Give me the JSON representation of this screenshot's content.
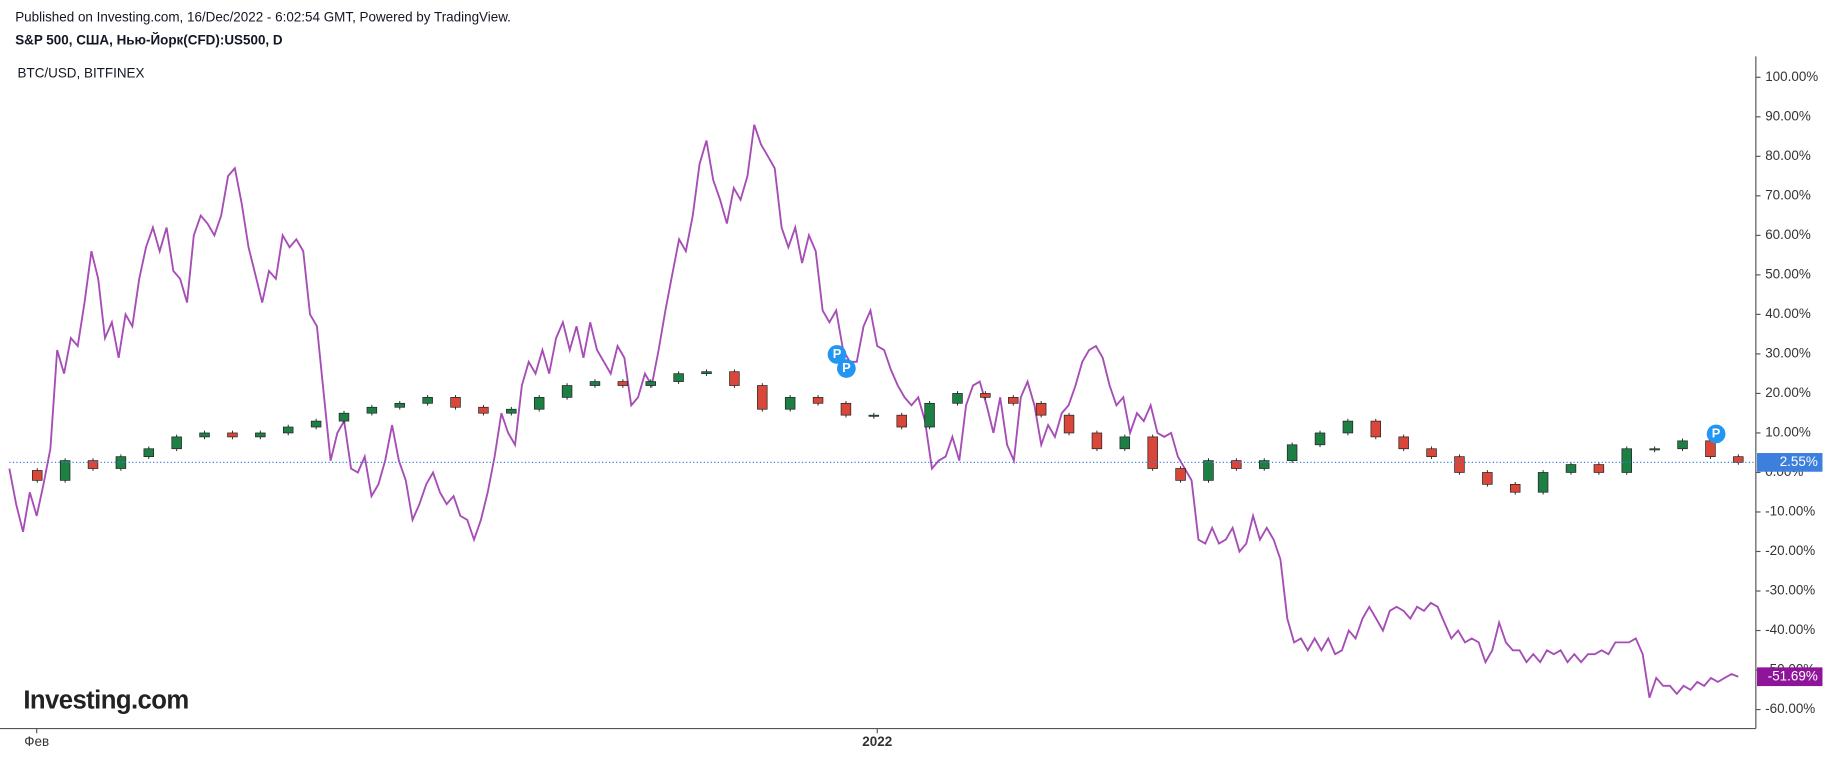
{
  "chart_data": {
    "type": "candle-line",
    "published": "Published on Investing.com, 16/Dec/2022 - 6:02:54 GMT, Powered by TradingView.",
    "watermark": "Investing.com",
    "event_marker": "P",
    "ylim": [
      -64.8,
      105.3
    ],
    "yticks": [
      {
        "value": 100,
        "label": "100.00%"
      },
      {
        "value": 90,
        "label": "90.00%"
      },
      {
        "value": 80,
        "label": "80.00%"
      },
      {
        "value": 70,
        "label": "70.00%"
      },
      {
        "value": 60,
        "label": "60.00%"
      },
      {
        "value": 50,
        "label": "50.00%"
      },
      {
        "value": 40,
        "label": "40.00%"
      },
      {
        "value": 30,
        "label": "30.00%"
      },
      {
        "value": 20,
        "label": "20.00%"
      },
      {
        "value": 10,
        "label": "10.00%"
      },
      {
        "value": 0,
        "label": "0.00%"
      },
      {
        "value": -10,
        "label": "-10.00%"
      },
      {
        "value": -20,
        "label": "-20.00%"
      },
      {
        "value": -30,
        "label": "-30.00%"
      },
      {
        "value": -40,
        "label": "-40.00%"
      },
      {
        "value": -50,
        "label": "-50.00%"
      },
      {
        "value": -60,
        "label": "-60.00%"
      }
    ],
    "xlim": [
      0,
      253
    ],
    "xticks": [
      {
        "value": 4,
        "label": "Фев"
      },
      {
        "value": 127,
        "label": "2022"
      }
    ],
    "grid": false,
    "series": [
      {
        "name": "BTC/USD, BITFINEX",
        "kind": "line",
        "color": "#a64db6",
        "last_label": "-51.69%",
        "label_color": "#8e1599",
        "values": [
          1,
          -8,
          -15,
          -5,
          -11,
          -3,
          6,
          31,
          25,
          34,
          32,
          43,
          56,
          49,
          34,
          38,
          29,
          40,
          37,
          49,
          57,
          62,
          56,
          62,
          51,
          49,
          43,
          60,
          65,
          63,
          60,
          65,
          75,
          77,
          68,
          57,
          50,
          43,
          51,
          49,
          60,
          57,
          59,
          56,
          40,
          37,
          20,
          3,
          10,
          13,
          1,
          0,
          4,
          -6,
          -3,
          3,
          12,
          3,
          -2,
          -12,
          -8,
          -3,
          0,
          -5,
          -8,
          -6,
          -11,
          -12,
          -17,
          -12,
          -5,
          4,
          15,
          10,
          7,
          22,
          28,
          25,
          31,
          25,
          34,
          38,
          31,
          37,
          29,
          38,
          31,
          28,
          25,
          32,
          29,
          17,
          19,
          25,
          22,
          31,
          41,
          50,
          59,
          56,
          65,
          78,
          84,
          74,
          69,
          63,
          72,
          69,
          75,
          88,
          83,
          80,
          77,
          62,
          57,
          62,
          53,
          60,
          56,
          41,
          38,
          41,
          31,
          28,
          28,
          37,
          41,
          32,
          31,
          26,
          22,
          19,
          17,
          19,
          13,
          1,
          3,
          4,
          9,
          3,
          17,
          22,
          23,
          17,
          10,
          19,
          7,
          3,
          19,
          23,
          17,
          7,
          12,
          9,
          15,
          17,
          22,
          28,
          31,
          32,
          29,
          22,
          17,
          19,
          10,
          15,
          13,
          17,
          10,
          9,
          10,
          4,
          1,
          -2,
          -17,
          -18,
          -14,
          -18,
          -17,
          -14,
          -20,
          -18,
          -11,
          -17,
          -14,
          -17,
          -22,
          -37,
          -43,
          -42,
          -45,
          -42,
          -45,
          -42,
          -46,
          -45,
          -40,
          -42,
          -37,
          -34,
          -37,
          -40,
          -35,
          -34,
          -35,
          -37,
          -34,
          -35,
          -33,
          -34,
          -38,
          -42,
          -40,
          -43,
          -42,
          -43,
          -48,
          -45,
          -38,
          -43,
          -45,
          -45,
          -48,
          -46,
          -48,
          -45,
          -46,
          -45,
          -48,
          -46,
          -48,
          -46,
          -46,
          -45,
          -46,
          -43,
          -43,
          -43,
          -42,
          -46,
          -57,
          -52,
          -54,
          -54,
          -56,
          -54,
          -55,
          -53,
          -54,
          -52,
          -53,
          -52,
          -51,
          -51.69
        ]
      },
      {
        "name": "S&P 500, США, Нью-Йорк(CFD):US500, D",
        "kind": "candles",
        "up_color": "#1e7f45",
        "down_color": "#d9473a",
        "last_label": "2.55%",
        "label_color": "#3d7fdc",
        "values": [
          0.5,
          -2,
          3,
          1,
          4,
          6,
          9,
          10,
          9,
          10,
          11.5,
          13,
          15,
          16.5,
          17.5,
          19,
          16.5,
          15,
          16,
          19,
          22,
          23,
          22,
          23,
          25,
          25.5,
          22,
          16,
          19,
          17.5,
          14.5,
          14.5,
          11.5,
          17.5,
          20,
          19,
          17.5,
          14.5,
          10,
          6,
          9,
          1,
          -2,
          3,
          1,
          3,
          7,
          10,
          13,
          9,
          6,
          4,
          0,
          -3,
          -5,
          0,
          2,
          0,
          6,
          6,
          8,
          4,
          2.55
        ]
      }
    ]
  }
}
